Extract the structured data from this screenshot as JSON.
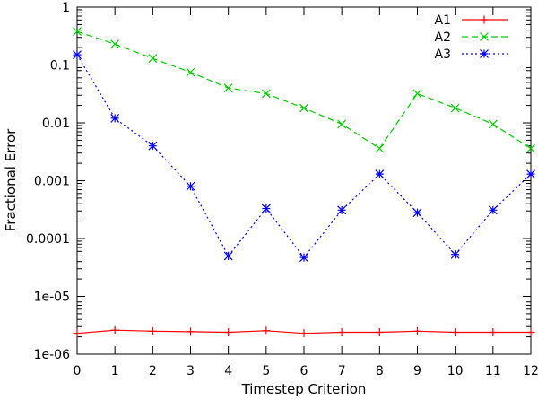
{
  "chart_data": {
    "type": "line",
    "title": "",
    "xlabel": "Timestep Criterion",
    "ylabel": "Fractional Error",
    "x": [
      0,
      1,
      2,
      3,
      4,
      5,
      6,
      7,
      8,
      9,
      10,
      11,
      12
    ],
    "xlim": [
      0,
      12
    ],
    "ylim": [
      1e-06,
      1
    ],
    "y_scale": "log",
    "grid": false,
    "legend_position": "top-right",
    "x_tick_labels": [
      "0",
      "1",
      "2",
      "3",
      "4",
      "5",
      "6",
      "7",
      "8",
      "9",
      "10",
      "11",
      "12"
    ],
    "y_ticks": [
      1e-06,
      1e-05,
      0.0001,
      0.001,
      0.01,
      0.1,
      1
    ],
    "y_tick_labels": [
      "1e-06",
      "1e-05",
      "0.0001",
      "0.001",
      "0.01",
      "0.1",
      "1"
    ],
    "series": [
      {
        "name": "A1",
        "color": "#ff0000",
        "dash": "solid",
        "marker": "plus",
        "values": [
          2.3e-06,
          2.6e-06,
          2.5e-06,
          2.45e-06,
          2.4e-06,
          2.55e-06,
          2.3e-06,
          2.4e-06,
          2.4e-06,
          2.5e-06,
          2.4e-06,
          2.4e-06,
          2.4e-06
        ]
      },
      {
        "name": "A2",
        "color": "#00cc00",
        "dash": "dashed",
        "marker": "cross",
        "values": [
          0.38,
          0.23,
          0.13,
          0.075,
          0.04,
          0.032,
          0.018,
          0.0095,
          0.0036,
          0.032,
          0.018,
          0.0095,
          0.0036
        ]
      },
      {
        "name": "A3",
        "color": "#0000ff",
        "dash": "dotted",
        "marker": "star",
        "values": [
          0.15,
          0.012,
          0.004,
          0.0008,
          5e-05,
          0.00033,
          4.7e-05,
          0.00031,
          0.0013,
          0.00028,
          5.3e-05,
          0.00031,
          0.0013
        ]
      }
    ]
  }
}
